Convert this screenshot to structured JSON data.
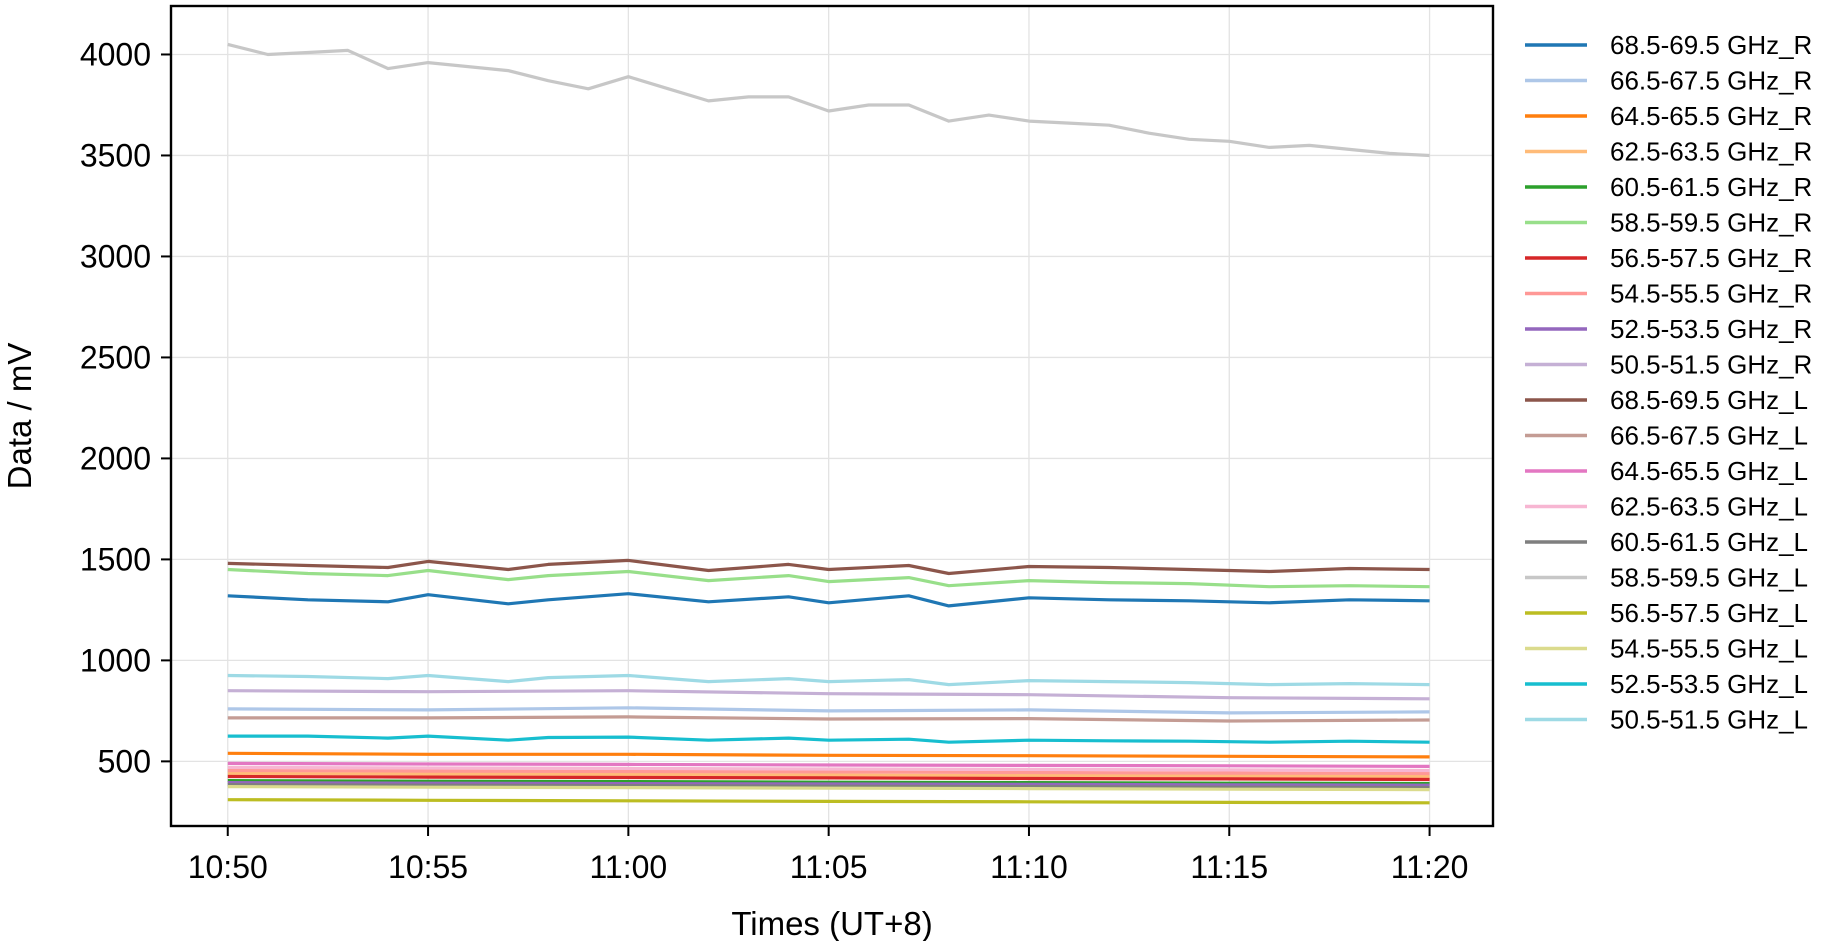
{
  "chart_data": {
    "type": "line",
    "title": "",
    "xlabel": "Times (UT+8)",
    "ylabel": "Data / mV",
    "x_ticks": [
      "10:50",
      "10:55",
      "11:00",
      "11:05",
      "11:10",
      "11:15",
      "11:20"
    ],
    "y_ticks": [
      "500",
      "1000",
      "1500",
      "2000",
      "2500",
      "3000",
      "3500",
      "4000"
    ],
    "xlim": [
      "10:48:35",
      "11:21:35"
    ],
    "ylim": [
      180,
      4240
    ],
    "grid": true,
    "legend_position": "outside-right",
    "series": [
      {
        "name": "68.5-69.5 GHz_R",
        "color": "#1f77b4",
        "x": [
          "10:50",
          "10:52",
          "10:54",
          "10:55",
          "10:57",
          "10:58",
          "11:00",
          "11:02",
          "11:04",
          "11:05",
          "11:07",
          "11:08",
          "11:10",
          "11:12",
          "11:14",
          "11:16",
          "11:18",
          "11:20"
        ],
        "values": [
          1320,
          1300,
          1290,
          1325,
          1280,
          1300,
          1330,
          1290,
          1315,
          1285,
          1320,
          1270,
          1310,
          1300,
          1295,
          1285,
          1300,
          1295
        ]
      },
      {
        "name": "66.5-67.5 GHz_R",
        "color": "#aec7e8",
        "x": [
          "10:50",
          "10:55",
          "11:00",
          "11:05",
          "11:10",
          "11:15",
          "11:20"
        ],
        "values": [
          760,
          755,
          765,
          750,
          755,
          740,
          745
        ]
      },
      {
        "name": "64.5-65.5 GHz_R",
        "color": "#ff7f0e",
        "x": [
          "10:50",
          "10:55",
          "11:00",
          "11:05",
          "11:10",
          "11:15",
          "11:20"
        ],
        "values": [
          540,
          535,
          535,
          530,
          528,
          525,
          522
        ]
      },
      {
        "name": "62.5-63.5 GHz_R",
        "color": "#ffbb78",
        "x": [
          "10:50",
          "10:55",
          "11:00",
          "11:05",
          "11:10",
          "11:15",
          "11:20"
        ],
        "values": [
          440,
          438,
          435,
          432,
          430,
          428,
          425
        ]
      },
      {
        "name": "60.5-61.5 GHz_R",
        "color": "#2ca02c",
        "x": [
          "10:50",
          "10:55",
          "11:00",
          "11:05",
          "11:10",
          "11:15",
          "11:20"
        ],
        "values": [
          405,
          402,
          400,
          397,
          395,
          392,
          390
        ]
      },
      {
        "name": "58.5-59.5 GHz_R",
        "color": "#98df8a",
        "x": [
          "10:50",
          "10:52",
          "10:54",
          "10:55",
          "10:57",
          "10:58",
          "11:00",
          "11:02",
          "11:04",
          "11:05",
          "11:07",
          "11:08",
          "11:10",
          "11:12",
          "11:14",
          "11:16",
          "11:18",
          "11:20"
        ],
        "values": [
          1450,
          1430,
          1420,
          1445,
          1400,
          1420,
          1440,
          1395,
          1420,
          1390,
          1410,
          1370,
          1395,
          1385,
          1380,
          1365,
          1370,
          1365
        ]
      },
      {
        "name": "56.5-57.5 GHz_R",
        "color": "#d62728",
        "x": [
          "10:50",
          "10:55",
          "11:00",
          "11:05",
          "11:10",
          "11:15",
          "11:20"
        ],
        "values": [
          425,
          422,
          420,
          418,
          415,
          413,
          410
        ]
      },
      {
        "name": "54.5-55.5 GHz_R",
        "color": "#ff9896",
        "x": [
          "10:50",
          "10:55",
          "11:00",
          "11:05",
          "11:10",
          "11:15",
          "11:20"
        ],
        "values": [
          455,
          452,
          450,
          448,
          445,
          442,
          440
        ]
      },
      {
        "name": "52.5-53.5 GHz_R",
        "color": "#9467bd",
        "x": [
          "10:50",
          "10:55",
          "11:00",
          "11:05",
          "11:10",
          "11:15",
          "11:20"
        ],
        "values": [
          395,
          392,
          390,
          388,
          386,
          384,
          382
        ]
      },
      {
        "name": "50.5-51.5 GHz_R",
        "color": "#c5b0d5",
        "x": [
          "10:50",
          "10:55",
          "11:00",
          "11:05",
          "11:10",
          "11:15",
          "11:20"
        ],
        "values": [
          850,
          845,
          850,
          835,
          830,
          815,
          810
        ]
      },
      {
        "name": "68.5-69.5 GHz_L",
        "color": "#8c564b",
        "x": [
          "10:50",
          "10:52",
          "10:54",
          "10:55",
          "10:57",
          "10:58",
          "11:00",
          "11:02",
          "11:04",
          "11:05",
          "11:07",
          "11:08",
          "11:10",
          "11:12",
          "11:14",
          "11:16",
          "11:18",
          "11:20"
        ],
        "values": [
          1480,
          1470,
          1460,
          1490,
          1450,
          1475,
          1495,
          1445,
          1475,
          1450,
          1470,
          1430,
          1465,
          1460,
          1450,
          1440,
          1455,
          1450
        ]
      },
      {
        "name": "66.5-67.5 GHz_L",
        "color": "#c49c94",
        "x": [
          "10:50",
          "10:55",
          "11:00",
          "11:05",
          "11:10",
          "11:15",
          "11:20"
        ],
        "values": [
          715,
          715,
          720,
          710,
          712,
          700,
          705
        ]
      },
      {
        "name": "64.5-65.5 GHz_L",
        "color": "#e377c2",
        "x": [
          "10:50",
          "10:55",
          "11:00",
          "11:05",
          "11:10",
          "11:15",
          "11:20"
        ],
        "values": [
          490,
          487,
          485,
          482,
          480,
          478,
          475
        ]
      },
      {
        "name": "62.5-63.5 GHz_L",
        "color": "#f7b6d2",
        "x": [
          "10:50",
          "10:55",
          "11:00",
          "11:05",
          "11:10",
          "11:15",
          "11:20"
        ],
        "values": [
          470,
          467,
          465,
          462,
          460,
          458,
          455
        ]
      },
      {
        "name": "60.5-61.5 GHz_L",
        "color": "#7f7f7f",
        "x": [
          "10:50",
          "10:55",
          "11:00",
          "11:05",
          "11:10",
          "11:15",
          "11:20"
        ],
        "values": [
          385,
          382,
          380,
          377,
          375,
          372,
          370
        ]
      },
      {
        "name": "58.5-59.5 GHz_L",
        "color": "#c7c7c7",
        "x": [
          "10:50",
          "10:51",
          "10:52",
          "10:53",
          "10:54",
          "10:55",
          "10:56",
          "10:57",
          "10:58",
          "10:59",
          "11:00",
          "11:01",
          "11:02",
          "11:03",
          "11:04",
          "11:05",
          "11:06",
          "11:07",
          "11:08",
          "11:09",
          "11:10",
          "11:11",
          "11:12",
          "11:13",
          "11:14",
          "11:15",
          "11:16",
          "11:17",
          "11:18",
          "11:19",
          "11:20"
        ],
        "values": [
          4050,
          4000,
          4010,
          4020,
          3930,
          3960,
          3940,
          3920,
          3870,
          3830,
          3890,
          3830,
          3770,
          3790,
          3790,
          3720,
          3750,
          3750,
          3670,
          3700,
          3670,
          3660,
          3650,
          3610,
          3580,
          3570,
          3540,
          3550,
          3530,
          3510,
          3500
        ]
      },
      {
        "name": "56.5-57.5 GHz_L",
        "color": "#bcbd22",
        "x": [
          "10:50",
          "10:55",
          "11:00",
          "11:05",
          "11:10",
          "11:15",
          "11:20"
        ],
        "values": [
          310,
          307,
          305,
          302,
          300,
          297,
          295
        ]
      },
      {
        "name": "54.5-55.5 GHz_L",
        "color": "#dbdb8d",
        "x": [
          "10:50",
          "10:55",
          "11:00",
          "11:05",
          "11:10",
          "11:15",
          "11:20"
        ],
        "values": [
          375,
          372,
          370,
          367,
          365,
          362,
          360
        ]
      },
      {
        "name": "52.5-53.5 GHz_L",
        "color": "#17becf",
        "x": [
          "10:50",
          "10:52",
          "10:54",
          "10:55",
          "10:57",
          "10:58",
          "11:00",
          "11:02",
          "11:04",
          "11:05",
          "11:07",
          "11:08",
          "11:10",
          "11:12",
          "11:14",
          "11:16",
          "11:18",
          "11:20"
        ],
        "values": [
          625,
          625,
          615,
          625,
          605,
          618,
          620,
          605,
          615,
          605,
          610,
          595,
          605,
          602,
          600,
          595,
          600,
          595
        ]
      },
      {
        "name": "50.5-51.5 GHz_L",
        "color": "#9edae5",
        "x": [
          "10:50",
          "10:52",
          "10:54",
          "10:55",
          "10:57",
          "10:58",
          "11:00",
          "11:02",
          "11:04",
          "11:05",
          "11:07",
          "11:08",
          "11:10",
          "11:12",
          "11:14",
          "11:16",
          "11:18",
          "11:20"
        ],
        "values": [
          925,
          920,
          910,
          925,
          895,
          915,
          925,
          895,
          910,
          895,
          905,
          880,
          900,
          895,
          890,
          880,
          885,
          880
        ]
      }
    ]
  }
}
